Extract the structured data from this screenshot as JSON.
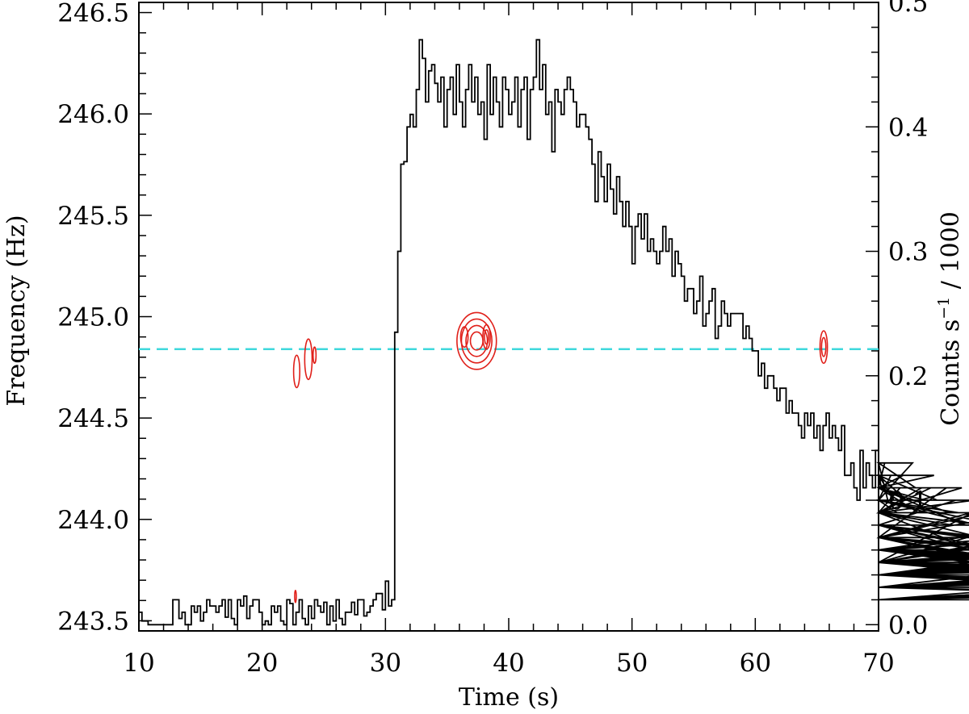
{
  "chart_data": {
    "type": "line",
    "xlabel": "Time (s)",
    "ylabel_left": "Frequency (Hz)",
    "ylabel_right": "Counts s$-1$ / 1000",
    "ylabel_right_parts": {
      "pre": "Counts s",
      "sup": "−1",
      "post": " / 1000"
    },
    "xlim": [
      10,
      70
    ],
    "ylim_left": [
      243.45,
      246.55
    ],
    "ylim_right": [
      -0.005,
      0.5
    ],
    "xticks": [
      "10",
      "20",
      "30",
      "40",
      "50",
      "60",
      "70"
    ],
    "yticks_left": [
      "243.5",
      "244.0",
      "244.5",
      "245.0",
      "245.5",
      "246.0",
      "246.5"
    ],
    "yticks_right": [
      "0.0",
      "0.1",
      "0.2",
      "0.3",
      "0.4",
      "0.5"
    ],
    "colors": {
      "lightcurve": "#000000",
      "contours": "#e0201a",
      "reference": "#3fd8dc"
    },
    "reference_line": {
      "frequency": 244.84,
      "style": "dashed"
    },
    "series": [
      {
        "axis": "right",
        "style": "step",
        "bin_width": 0.25,
        "x_start": 10.0,
        "values": [
          0.01,
          0.003,
          0.003,
          0.0,
          0.0,
          0.0,
          0.0,
          0.0,
          0.0,
          0.0,
          0.0,
          0.02,
          0.02,
          0.005,
          0.01,
          0.0,
          0.0,
          0.015,
          0.01,
          0.015,
          0.003,
          0.01,
          0.02,
          0.015,
          0.015,
          0.01,
          0.015,
          0.02,
          0.006,
          0.02,
          0.005,
          0.0,
          0.02,
          0.015,
          0.023,
          0.005,
          0.015,
          0.02,
          0.02,
          0.01,
          0.0,
          0.003,
          0.0,
          0.015,
          0.01,
          0.015,
          0.003,
          0.0,
          0.02,
          0.017,
          0.0,
          0.01,
          0.02,
          0.005,
          0.0,
          0.015,
          0.005,
          0.02,
          0.015,
          0.01,
          0.018,
          0.0,
          0.015,
          0.003,
          0.02,
          0.005,
          0.0,
          0.01,
          0.01,
          0.018,
          0.008,
          0.02,
          0.02,
          0.007,
          0.01,
          0.015,
          0.02,
          0.025,
          0.025,
          0.012,
          0.035,
          0.015,
          0.02,
          0.235,
          0.3,
          0.37,
          0.372,
          0.4,
          0.41,
          0.4,
          0.43,
          0.47,
          0.455,
          0.42,
          0.445,
          0.45,
          0.435,
          0.42,
          0.44,
          0.4,
          0.43,
          0.44,
          0.41,
          0.45,
          0.42,
          0.4,
          0.43,
          0.45,
          0.42,
          0.44,
          0.41,
          0.42,
          0.39,
          0.45,
          0.41,
          0.44,
          0.42,
          0.4,
          0.44,
          0.43,
          0.41,
          0.42,
          0.44,
          0.4,
          0.43,
          0.44,
          0.39,
          0.43,
          0.44,
          0.47,
          0.43,
          0.45,
          0.41,
          0.42,
          0.38,
          0.43,
          0.42,
          0.41,
          0.43,
          0.44,
          0.43,
          0.42,
          0.4,
          0.41,
          0.41,
          0.4,
          0.39,
          0.37,
          0.34,
          0.38,
          0.36,
          0.34,
          0.37,
          0.35,
          0.33,
          0.36,
          0.34,
          0.32,
          0.34,
          0.32,
          0.29,
          0.32,
          0.33,
          0.31,
          0.33,
          0.3,
          0.31,
          0.3,
          0.29,
          0.3,
          0.32,
          0.3,
          0.31,
          0.28,
          0.3,
          0.29,
          0.28,
          0.26,
          0.27,
          0.27,
          0.25,
          0.26,
          0.28,
          0.24,
          0.25,
          0.26,
          0.27,
          0.23,
          0.24,
          0.26,
          0.25,
          0.24,
          0.25,
          0.25,
          0.25,
          0.25,
          0.23,
          0.24,
          0.23,
          0.22,
          0.22,
          0.2,
          0.21,
          0.19,
          0.2,
          0.2,
          0.19,
          0.18,
          0.19,
          0.19,
          0.17,
          0.18,
          0.17,
          0.17,
          0.16,
          0.15,
          0.17,
          0.16,
          0.17,
          0.15,
          0.16,
          0.14,
          0.16,
          0.17,
          0.15,
          0.16,
          0.15,
          0.14,
          0.16,
          0.12,
          0.12,
          0.13,
          0.11,
          0.1,
          0.14,
          0.11,
          0.13,
          0.12,
          0.11,
          0.14,
          0.12,
          0.11,
          0.13,
          0.1,
          0.12,
          0.1,
          0.09,
          0.11,
          0.12,
          0.1,
          0.1,
          0.13,
          0.11,
          0.09,
          0.11,
          0.1,
          0.09,
          0.11,
          0.12,
          0.1,
          0.09,
          0.07,
          0.11,
          0.09,
          0.08,
          0.1,
          0.09,
          0.11,
          0.08,
          0.07,
          0.09,
          0.1,
          0.08,
          0.07,
          0.09,
          0.08,
          0.07,
          0.05,
          0.1,
          0.08,
          0.06,
          0.07,
          0.05,
          0.08,
          0.05,
          0.07,
          0.06,
          0.05,
          0.07,
          0.09,
          0.06,
          0.05,
          0.06,
          0.08,
          0.05,
          0.07,
          0.06,
          0.05,
          0.06,
          0.04,
          0.06,
          0.05,
          0.05,
          0.06,
          0.04,
          0.05,
          0.06,
          0.05,
          0.06,
          0.07,
          0.04,
          0.05,
          0.06,
          0.05,
          0.04,
          0.06,
          0.05,
          0.05,
          0.06,
          0.04,
          0.05,
          0.06,
          0.04,
          0.05,
          0.05,
          0.06,
          0.05,
          0.05,
          0.04,
          0.06,
          0.05,
          0.04,
          0.06,
          0.05,
          0.04,
          0.05,
          0.06,
          0.04,
          0.05,
          0.05,
          0.04,
          0.03,
          0.06,
          0.05,
          0.05,
          0.04,
          0.07,
          0.04,
          0.06,
          0.05,
          0.04,
          0.03,
          0.05,
          0.03,
          0.05,
          0.06,
          0.04,
          0.06,
          0.05,
          0.05,
          0.04,
          0.03,
          0.05,
          0.04,
          0.05,
          0.06,
          0.04,
          0.05,
          0.06,
          0.05,
          0.04,
          0.04,
          0.03,
          0.02,
          0.03,
          0.04,
          0.05,
          0.02,
          0.03,
          0.05,
          0.04,
          0.02,
          0.03,
          0.04,
          0.03,
          0.05,
          0.02,
          0.04,
          0.03,
          0.04,
          0.02,
          0.03,
          0.05,
          0.04,
          0.02,
          0.05,
          0.04,
          0.03,
          0.04,
          0.05,
          0.03,
          0.05,
          0.04,
          0.05,
          0.04,
          0.05,
          0.04,
          0.03,
          0.04,
          0.03,
          0.05,
          0.04,
          0.02,
          0.03,
          0.02,
          0.03,
          0.02,
          0.03,
          0.04,
          0.02,
          0.03,
          0.02,
          0.03,
          0.05,
          0.04,
          0.02,
          0.02,
          0.04,
          0.03,
          0.02,
          0.04,
          0.03,
          0.04
        ]
      }
    ],
    "contours": [
      {
        "x": 22.8,
        "freq": 244.73,
        "rx": 0.25,
        "ry": 0.08,
        "levels": 1
      },
      {
        "x": 23.75,
        "freq": 244.79,
        "rx": 0.3,
        "ry": 0.1,
        "levels": 1
      },
      {
        "x": 24.25,
        "freq": 244.81,
        "rx": 0.12,
        "ry": 0.04,
        "levels": 1
      },
      {
        "x": 22.7,
        "freq": 243.62,
        "rx": 0.05,
        "ry": 0.03,
        "levels": 1
      },
      {
        "x": 37.4,
        "freq": 244.88,
        "rx": 1.6,
        "ry": 0.14,
        "levels": 4
      },
      {
        "x": 36.4,
        "freq": 244.9,
        "rx": 0.3,
        "ry": 0.05,
        "levels": 1
      },
      {
        "x": 38.2,
        "freq": 244.9,
        "rx": 0.3,
        "ry": 0.06,
        "levels": 2
      },
      {
        "x": 65.55,
        "freq": 244.85,
        "rx": 0.3,
        "ry": 0.08,
        "levels": 2
      }
    ]
  }
}
